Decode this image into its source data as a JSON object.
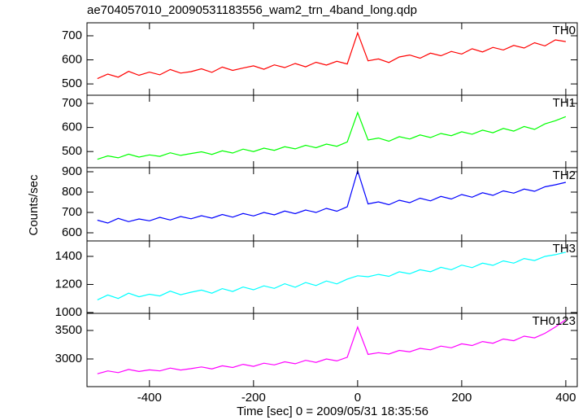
{
  "chart_data": {
    "type": "line",
    "title": "ae704057010_20090531183556_wam2_trn_4band_long.qdp",
    "xlabel": "Time [sec] 0 = 2009/05/31 18:35:56",
    "ylabel": "Counts/sec",
    "xlim": [
      -520,
      422
    ],
    "xticks": [
      -400,
      -200,
      0,
      200,
      400
    ],
    "x": [
      -500,
      -480,
      -460,
      -440,
      -420,
      -400,
      -380,
      -360,
      -340,
      -320,
      -300,
      -280,
      -260,
      -240,
      -220,
      -200,
      -180,
      -160,
      -140,
      -120,
      -100,
      -80,
      -60,
      -40,
      -20,
      0,
      20,
      40,
      60,
      80,
      100,
      120,
      140,
      160,
      180,
      200,
      220,
      240,
      260,
      280,
      300,
      320,
      340,
      360,
      380,
      400
    ],
    "panels": [
      {
        "name": "TH0",
        "color": "#ff0000",
        "ylim": [
          453,
          754
        ],
        "yticks": [
          500,
          600,
          700
        ],
        "values": [
          522,
          541,
          528,
          552,
          536,
          549,
          538,
          560,
          545,
          551,
          563,
          548,
          570,
          556,
          566,
          575,
          561,
          579,
          568,
          585,
          571,
          590,
          578,
          594,
          583,
          712,
          596,
          604,
          589,
          612,
          620,
          607,
          628,
          617,
          635,
          624,
          646,
          633,
          652,
          641,
          660,
          649,
          671,
          658,
          683,
          676
        ]
      },
      {
        "name": "TH1",
        "color": "#00ff00",
        "ylim": [
          433,
          734
        ],
        "yticks": [
          500,
          600,
          700
        ],
        "values": [
          468,
          482,
          474,
          489,
          477,
          486,
          480,
          495,
          484,
          492,
          499,
          488,
          503,
          494,
          510,
          500,
          514,
          505,
          520,
          511,
          526,
          516,
          531,
          522,
          540,
          662,
          548,
          556,
          543,
          562,
          552,
          569,
          558,
          575,
          566,
          582,
          572,
          589,
          578,
          596,
          585,
          604,
          592,
          615,
          628,
          645
        ]
      },
      {
        "name": "TH2",
        "color": "#0000ff",
        "ylim": [
          560,
          920
        ],
        "yticks": [
          600,
          700,
          800,
          900
        ],
        "values": [
          662,
          648,
          671,
          655,
          668,
          659,
          676,
          663,
          680,
          669,
          684,
          672,
          690,
          677,
          695,
          683,
          700,
          688,
          707,
          694,
          712,
          700,
          720,
          706,
          728,
          905,
          742,
          752,
          738,
          760,
          748,
          770,
          757,
          779,
          766,
          788,
          775,
          797,
          784,
          806,
          795,
          815,
          804,
          826,
          836,
          848
        ]
      },
      {
        "name": "TH3",
        "color": "#00ffff",
        "ylim": [
          994,
          1510
        ],
        "yticks": [
          1000,
          1200,
          1400
        ],
        "values": [
          1090,
          1125,
          1100,
          1138,
          1112,
          1130,
          1118,
          1152,
          1127,
          1145,
          1160,
          1138,
          1170,
          1150,
          1182,
          1162,
          1190,
          1172,
          1205,
          1180,
          1214,
          1192,
          1225,
          1204,
          1238,
          1262,
          1255,
          1272,
          1258,
          1290,
          1276,
          1305,
          1290,
          1322,
          1305,
          1338,
          1320,
          1352,
          1336,
          1368,
          1352,
          1385,
          1370,
          1400,
          1412,
          1430
        ]
      },
      {
        "name": "TH0123",
        "color": "#ff00ff",
        "ylim": [
          2514,
          3800
        ],
        "yticks": [
          3000,
          3500
        ],
        "values": [
          2740,
          2790,
          2760,
          2815,
          2780,
          2808,
          2790,
          2840,
          2805,
          2830,
          2860,
          2825,
          2880,
          2850,
          2905,
          2870,
          2925,
          2895,
          2950,
          2915,
          2975,
          2940,
          3000,
          2965,
          3030,
          3560,
          3080,
          3110,
          3085,
          3150,
          3125,
          3185,
          3160,
          3225,
          3195,
          3265,
          3235,
          3305,
          3275,
          3350,
          3320,
          3400,
          3370,
          3450,
          3560,
          3690
        ]
      }
    ]
  }
}
